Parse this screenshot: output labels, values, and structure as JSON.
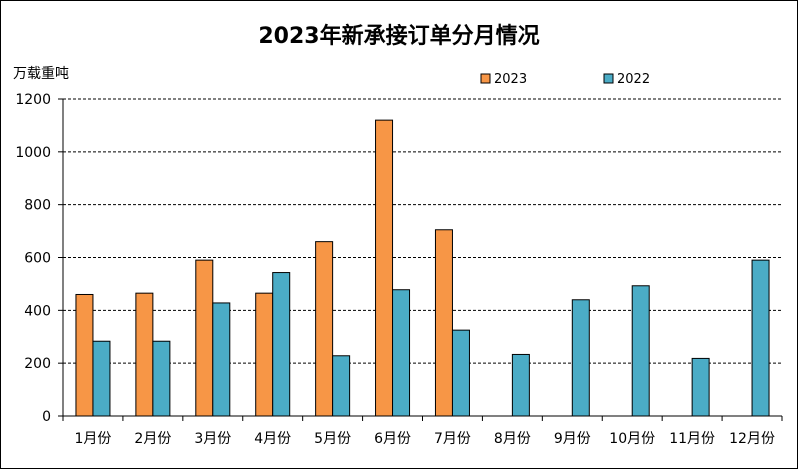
{
  "chart_data": {
    "type": "bar",
    "title": "2023年新承接订单分月情况",
    "ylabel": "万载重吨",
    "xlabel": "",
    "categories": [
      "1月份",
      "2月份",
      "3月份",
      "4月份",
      "5月份",
      "6月份",
      "7月份",
      "8月份",
      "9月份",
      "10月份",
      "11月份",
      "12月份"
    ],
    "series": [
      {
        "name": "2023",
        "color": "#F79646",
        "values": [
          460,
          465,
          590,
          465,
          660,
          1120,
          705,
          null,
          null,
          null,
          null,
          null
        ]
      },
      {
        "name": "2022",
        "color": "#4BACC6",
        "values": [
          283,
          283,
          428,
          543,
          228,
          478,
          325,
          233,
          440,
          493,
          218,
          590
        ]
      }
    ],
    "ylim": [
      0,
      1200
    ],
    "yticks": [
      0,
      200,
      400,
      600,
      800,
      1000,
      1200
    ],
    "grid": "dashed horizontal",
    "legend_position": "top-right"
  }
}
